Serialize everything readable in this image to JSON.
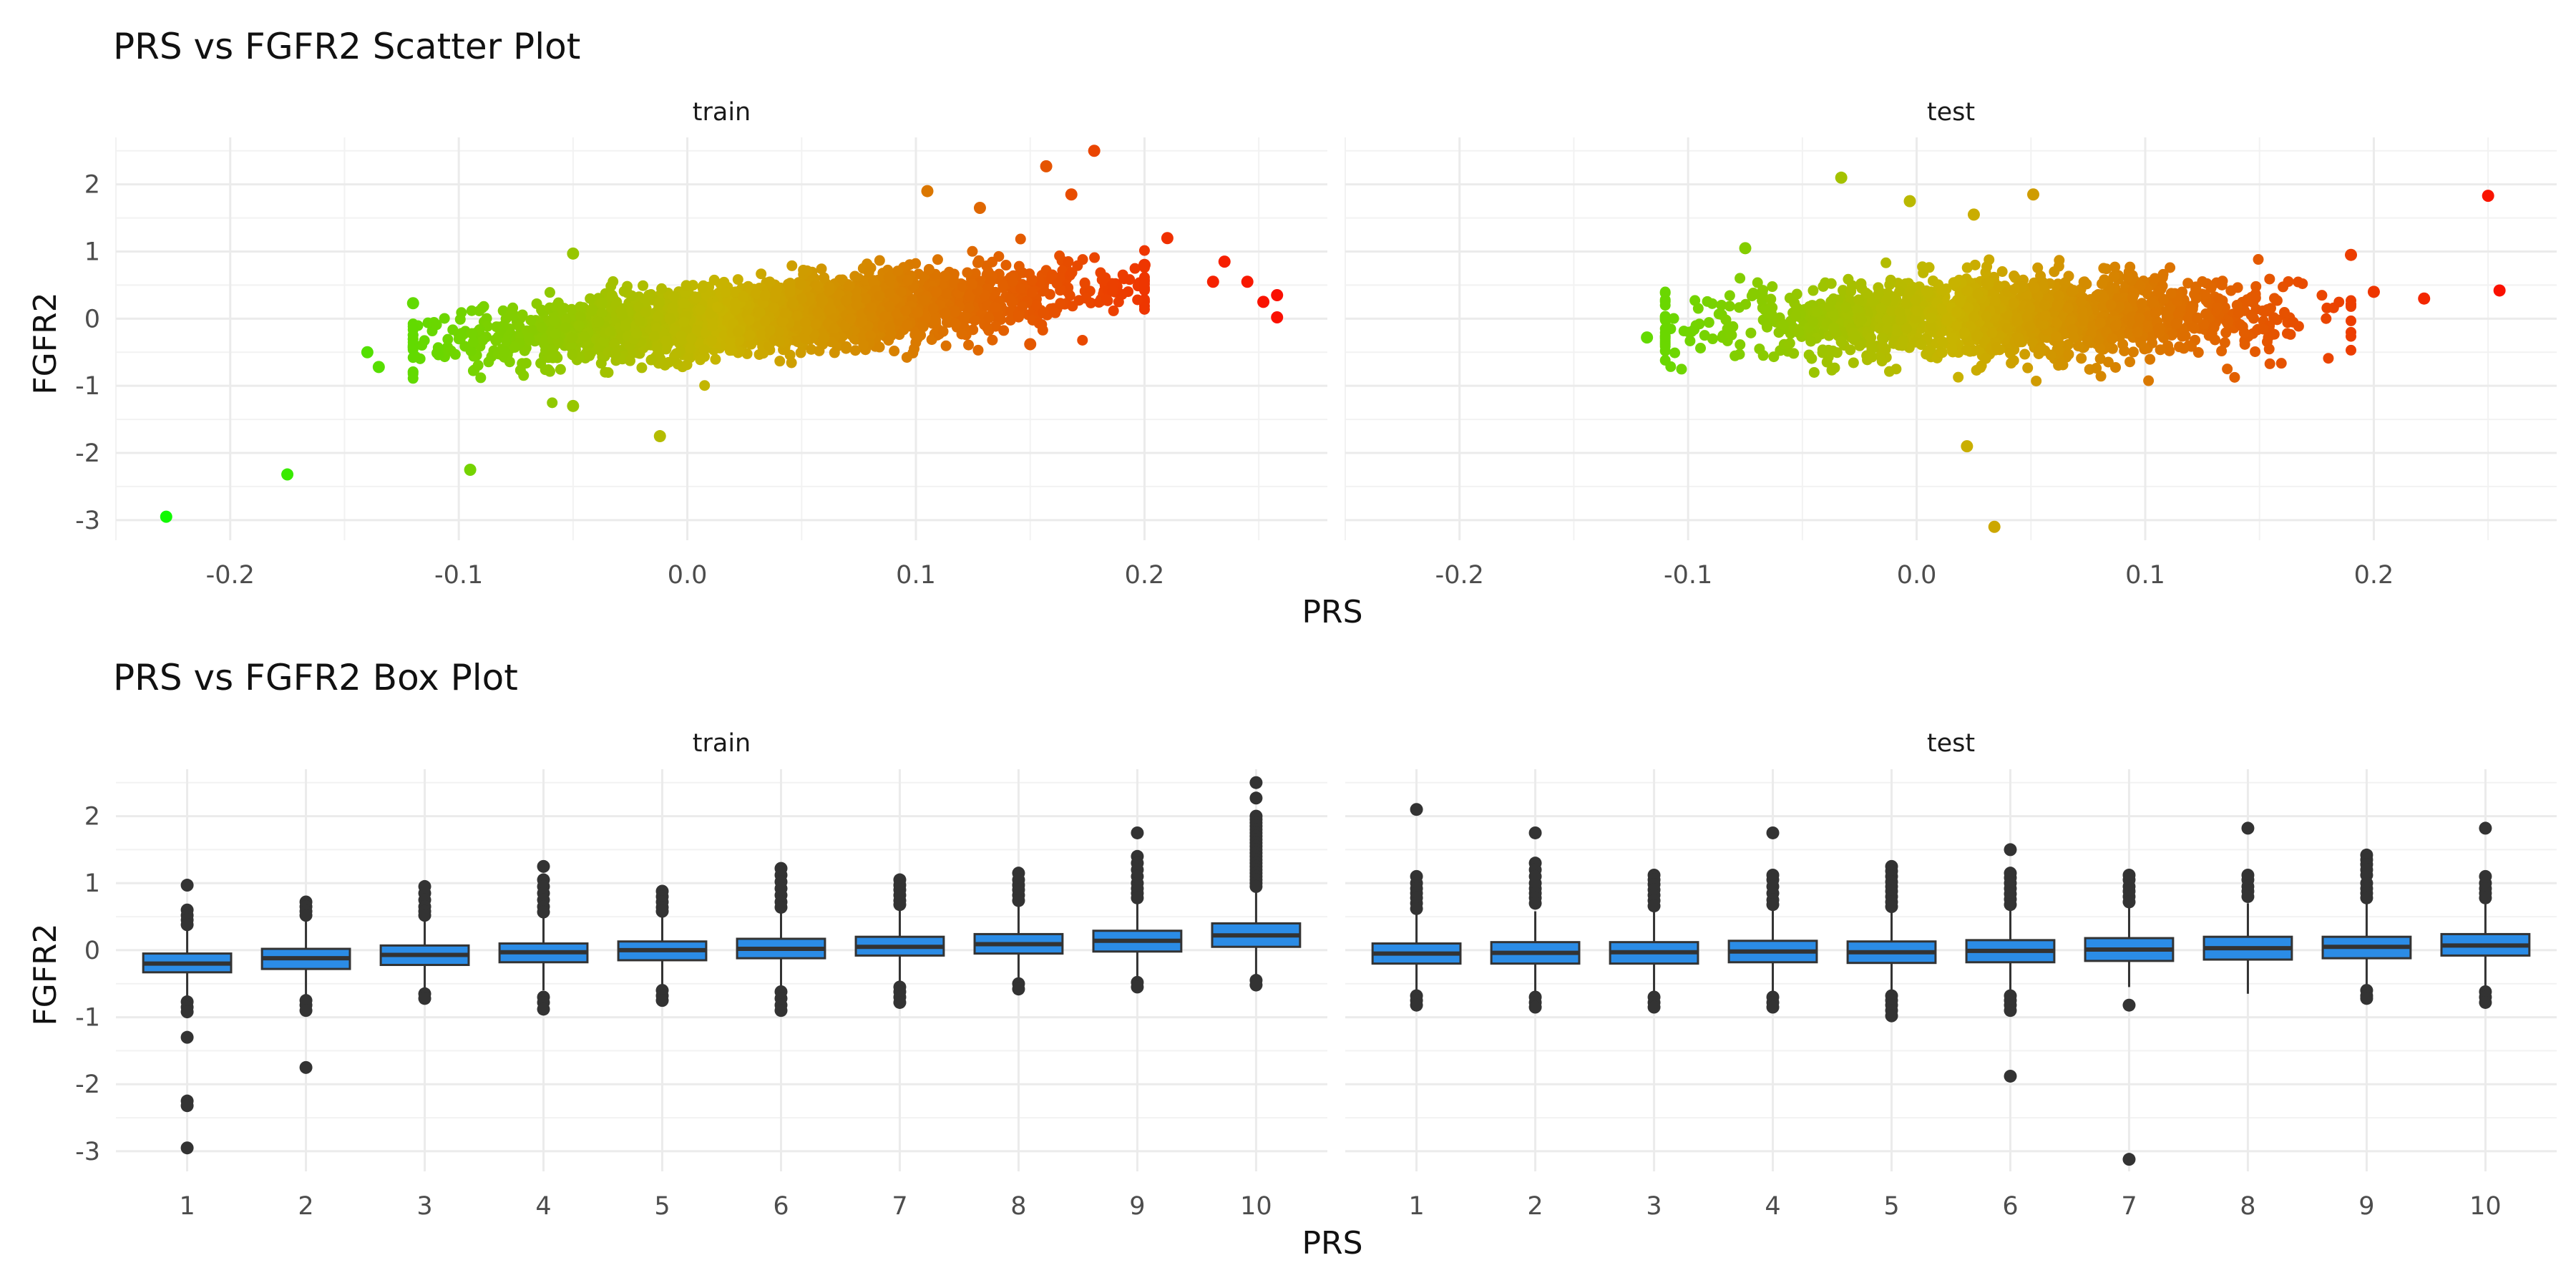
{
  "chart_data": [
    {
      "type": "scatter",
      "title": "PRS vs FGFR2 Scatter Plot",
      "xlabel": "PRS",
      "ylabel": "FGFR2",
      "xlim": [
        -0.25,
        0.28
      ],
      "ylim": [
        -3.3,
        2.7
      ],
      "x_ticks": [
        "-0.2",
        "-0.1",
        "0.0",
        "0.1",
        "0.2"
      ],
      "y_ticks": [
        "-3",
        "-2",
        "-1",
        "0",
        "1",
        "2"
      ],
      "color_scale": {
        "low": "#00ff00",
        "mid": "#c8b400",
        "high": "#ff0000"
      },
      "grid": true,
      "panels": [
        {
          "name": "train",
          "trend": {
            "x_range": [
              -0.12,
              0.2
            ],
            "intercept": -0.05,
            "slope": 2.6,
            "sd": 0.25
          },
          "n_points": 2800,
          "points": [
            {
              "x": -0.228,
              "y": -2.95
            },
            {
              "x": -0.175,
              "y": -2.32
            },
            {
              "x": -0.095,
              "y": -2.25
            },
            {
              "x": -0.012,
              "y": -1.75
            },
            {
              "x": -0.05,
              "y": -1.3
            },
            {
              "x": -0.05,
              "y": 0.97
            },
            {
              "x": -0.14,
              "y": -0.5
            },
            {
              "x": -0.135,
              "y": -0.72
            },
            {
              "x": -0.12,
              "y": 0.23
            },
            {
              "x": 0.178,
              "y": 2.5
            },
            {
              "x": 0.157,
              "y": 2.27
            },
            {
              "x": 0.105,
              "y": 1.9
            },
            {
              "x": 0.235,
              "y": 0.85
            },
            {
              "x": 0.245,
              "y": 0.55
            },
            {
              "x": 0.252,
              "y": 0.25
            },
            {
              "x": 0.258,
              "y": 0.35
            },
            {
              "x": 0.258,
              "y": 0.02
            },
            {
              "x": 0.23,
              "y": 0.55
            },
            {
              "x": 0.21,
              "y": 1.2
            },
            {
              "x": 0.2,
              "y": 0.8
            },
            {
              "x": 0.168,
              "y": 1.85
            },
            {
              "x": 0.128,
              "y": 1.65
            },
            {
              "x": 0.15,
              "y": -0.38
            }
          ]
        },
        {
          "name": "test",
          "trend": {
            "x_range": [
              -0.11,
              0.19
            ],
            "intercept": 0.0,
            "slope": 0.6,
            "sd": 0.28
          },
          "n_points": 1700,
          "points": [
            {
              "x": -0.033,
              "y": 2.1
            },
            {
              "x": 0.034,
              "y": -3.1
            },
            {
              "x": 0.022,
              "y": -1.9
            },
            {
              "x": -0.118,
              "y": -0.28
            },
            {
              "x": 0.25,
              "y": 1.83
            },
            {
              "x": 0.255,
              "y": 0.42
            },
            {
              "x": 0.222,
              "y": 0.3
            },
            {
              "x": 0.2,
              "y": 0.4
            },
            {
              "x": 0.19,
              "y": 0.95
            },
            {
              "x": 0.051,
              "y": 1.85
            },
            {
              "x": -0.003,
              "y": 1.75
            },
            {
              "x": 0.025,
              "y": 1.55
            },
            {
              "x": -0.075,
              "y": 1.05
            }
          ]
        }
      ]
    },
    {
      "type": "box",
      "title": "PRS vs FGFR2 Box Plot",
      "xlabel": "PRS",
      "ylabel": "FGFR2",
      "ylim": [
        -3.3,
        2.7
      ],
      "categories": [
        "1",
        "2",
        "3",
        "4",
        "5",
        "6",
        "7",
        "8",
        "9",
        "10"
      ],
      "y_ticks": [
        "-3",
        "-2",
        "-1",
        "0",
        "1",
        "2"
      ],
      "fill": "#2b8ce6",
      "grid": true,
      "panels": [
        {
          "name": "train",
          "boxes": [
            {
              "q1": -0.33,
              "median": -0.2,
              "q3": -0.05,
              "lower": -0.72,
              "upper": 0.33,
              "outliers": [
                0.97,
                0.6,
                0.52,
                0.45,
                0.38,
                -0.77,
                -0.85,
                -0.92,
                -1.3,
                -2.25,
                -2.32,
                -2.95
              ]
            },
            {
              "q1": -0.28,
              "median": -0.12,
              "q3": 0.02,
              "lower": -0.72,
              "upper": 0.45,
              "outliers": [
                0.72,
                0.65,
                0.58,
                0.52,
                -0.75,
                -0.82,
                -0.9,
                -1.75
              ]
            },
            {
              "q1": -0.22,
              "median": -0.07,
              "q3": 0.07,
              "lower": -0.62,
              "upper": 0.48,
              "outliers": [
                0.95,
                0.85,
                0.75,
                0.65,
                0.58,
                0.52,
                -0.65,
                -0.72
              ]
            },
            {
              "q1": -0.18,
              "median": -0.03,
              "q3": 0.1,
              "lower": -0.6,
              "upper": 0.5,
              "outliers": [
                1.25,
                1.05,
                0.95,
                0.85,
                0.75,
                0.65,
                0.57,
                -0.7,
                -0.78,
                -0.88
              ]
            },
            {
              "q1": -0.15,
              "median": 0.0,
              "q3": 0.13,
              "lower": -0.55,
              "upper": 0.52,
              "outliers": [
                0.88,
                0.8,
                0.72,
                0.64,
                0.58,
                -0.6,
                -0.68,
                -0.75
              ]
            },
            {
              "q1": -0.12,
              "median": 0.02,
              "q3": 0.17,
              "lower": -0.55,
              "upper": 0.58,
              "outliers": [
                1.22,
                1.12,
                1.02,
                0.92,
                0.82,
                0.72,
                0.64,
                -0.62,
                -0.72,
                -0.82,
                -0.9
              ]
            },
            {
              "q1": -0.08,
              "median": 0.05,
              "q3": 0.2,
              "lower": -0.5,
              "upper": 0.62,
              "outliers": [
                1.05,
                0.97,
                0.9,
                0.82,
                0.74,
                0.68,
                -0.55,
                -0.62,
                -0.7,
                -0.78
              ]
            },
            {
              "q1": -0.05,
              "median": 0.09,
              "q3": 0.24,
              "lower": -0.45,
              "upper": 0.66,
              "outliers": [
                1.15,
                1.05,
                0.97,
                0.9,
                0.82,
                0.74,
                -0.5,
                -0.58
              ]
            },
            {
              "q1": -0.02,
              "median": 0.14,
              "q3": 0.29,
              "lower": -0.4,
              "upper": 0.72,
              "outliers": [
                1.75,
                1.4,
                1.3,
                1.2,
                1.1,
                1.0,
                0.92,
                0.85,
                0.78,
                -0.48,
                -0.55
              ]
            },
            {
              "q1": 0.05,
              "median": 0.22,
              "q3": 0.4,
              "lower": -0.42,
              "upper": 0.9,
              "outliers": [
                2.5,
                2.27,
                2.0,
                1.95,
                1.9,
                1.85,
                1.8,
                1.75,
                1.7,
                1.65,
                1.6,
                1.55,
                1.5,
                1.45,
                1.4,
                1.35,
                1.3,
                1.25,
                1.2,
                1.15,
                1.1,
                1.05,
                1.0,
                0.95,
                -0.45,
                -0.52
              ]
            }
          ]
        },
        {
          "name": "test",
          "boxes": [
            {
              "q1": -0.2,
              "median": -0.05,
              "q3": 0.1,
              "lower": -0.6,
              "upper": 0.55,
              "outliers": [
                2.1,
                1.1,
                1.0,
                0.92,
                0.85,
                0.78,
                0.7,
                0.62,
                -0.68,
                -0.75,
                -0.82
              ]
            },
            {
              "q1": -0.2,
              "median": -0.04,
              "q3": 0.12,
              "lower": -0.62,
              "upper": 0.58,
              "outliers": [
                1.75,
                1.3,
                1.2,
                1.1,
                1.0,
                0.92,
                0.85,
                0.78,
                0.7,
                -0.7,
                -0.78,
                -0.85
              ]
            },
            {
              "q1": -0.2,
              "median": -0.03,
              "q3": 0.12,
              "lower": -0.62,
              "upper": 0.6,
              "outliers": [
                1.12,
                1.05,
                0.98,
                0.9,
                0.82,
                0.74,
                0.66,
                -0.7,
                -0.78,
                -0.85
              ]
            },
            {
              "q1": -0.18,
              "median": -0.02,
              "q3": 0.14,
              "lower": -0.62,
              "upper": 0.62,
              "outliers": [
                1.75,
                1.12,
                1.05,
                0.95,
                0.85,
                0.75,
                0.68,
                -0.7,
                -0.78,
                -0.85
              ]
            },
            {
              "q1": -0.19,
              "median": -0.03,
              "q3": 0.13,
              "lower": -0.62,
              "upper": 0.6,
              "outliers": [
                1.25,
                1.18,
                1.1,
                1.02,
                0.95,
                0.88,
                0.8,
                0.72,
                0.65,
                -0.68,
                -0.75,
                -0.82,
                -0.9,
                -0.98
              ]
            },
            {
              "q1": -0.18,
              "median": -0.01,
              "q3": 0.15,
              "lower": -0.6,
              "upper": 0.62,
              "outliers": [
                1.5,
                1.15,
                1.08,
                1.0,
                0.92,
                0.84,
                0.76,
                0.68,
                -0.68,
                -0.75,
                -0.82,
                -0.9,
                -1.88
              ]
            },
            {
              "q1": -0.16,
              "median": 0.01,
              "q3": 0.18,
              "lower": -0.55,
              "upper": 0.65,
              "outliers": [
                1.12,
                1.05,
                0.95,
                0.88,
                0.8,
                0.72,
                -0.82,
                -3.12
              ]
            },
            {
              "q1": -0.14,
              "median": 0.03,
              "q3": 0.2,
              "lower": -0.65,
              "upper": 0.7,
              "outliers": [
                1.82,
                1.12,
                1.05,
                0.95,
                0.88,
                0.8
              ]
            },
            {
              "q1": -0.12,
              "median": 0.05,
              "q3": 0.2,
              "lower": -0.55,
              "upper": 0.7,
              "outliers": [
                1.42,
                1.35,
                1.28,
                1.2,
                1.12,
                1.0,
                0.92,
                0.85,
                0.78,
                -0.6,
                -0.68,
                -0.72
              ]
            },
            {
              "q1": -0.08,
              "median": 0.07,
              "q3": 0.24,
              "lower": -0.55,
              "upper": 0.72,
              "outliers": [
                1.82,
                1.1,
                1.0,
                0.92,
                0.85,
                0.78,
                -0.62,
                -0.7,
                -0.78
              ]
            }
          ]
        }
      ]
    }
  ]
}
